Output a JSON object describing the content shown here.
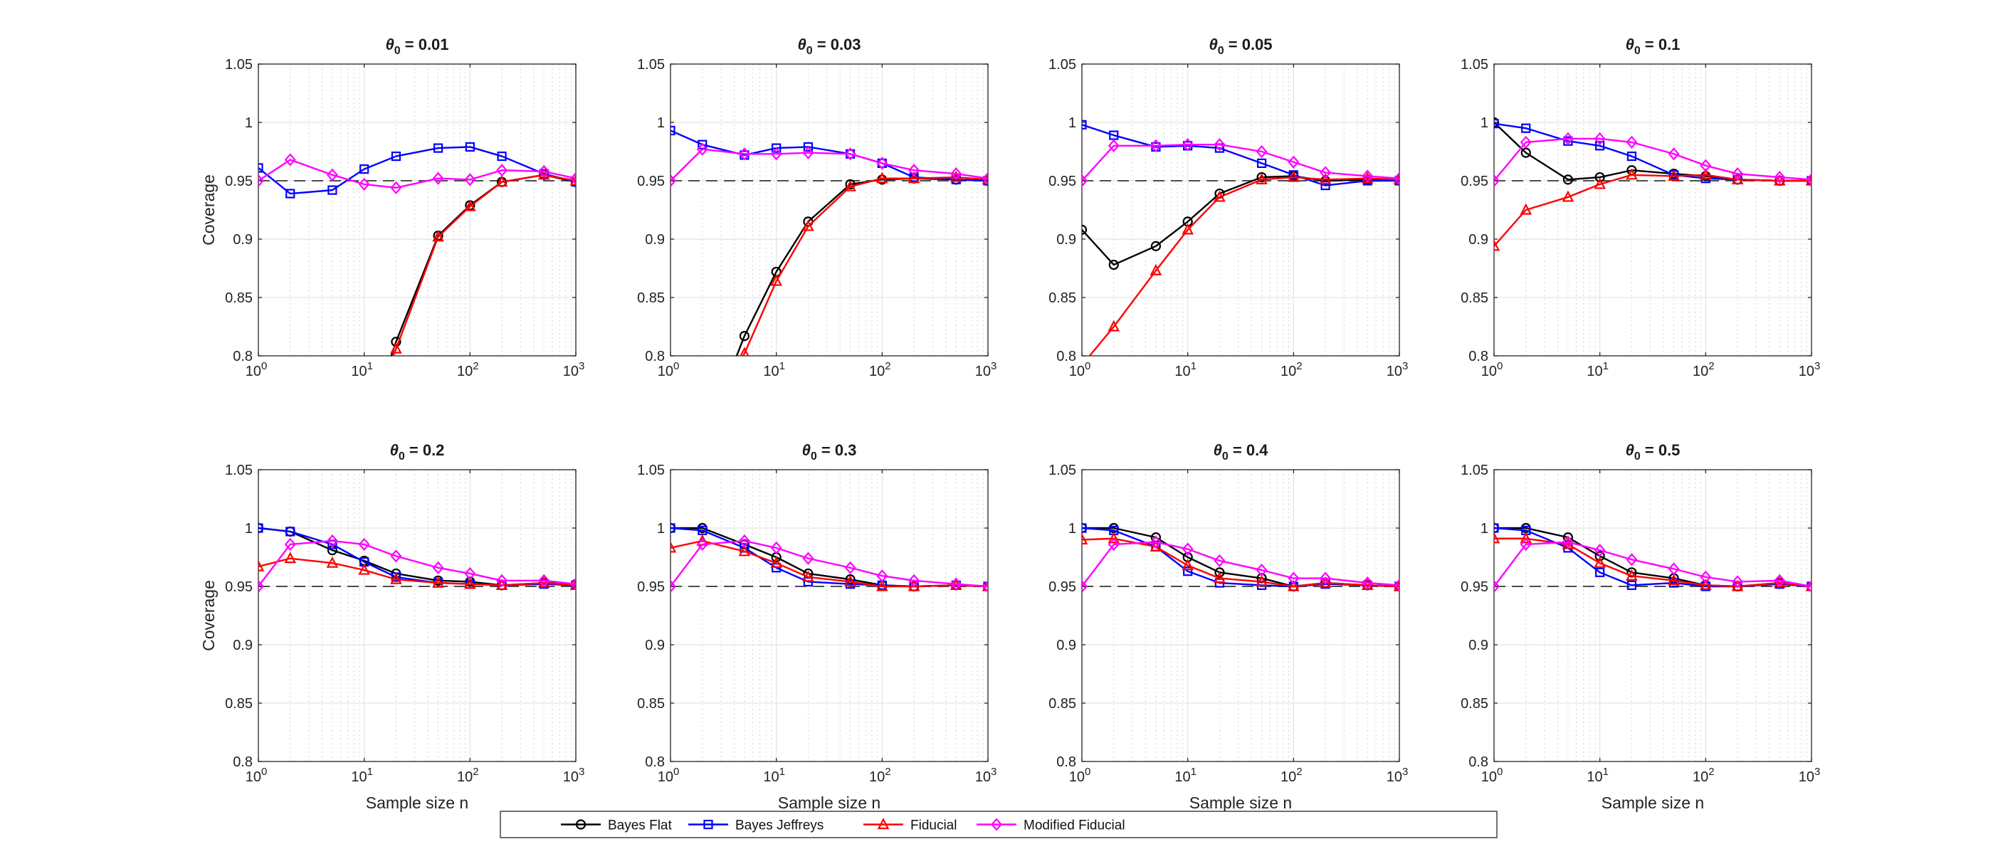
{
  "figure": {
    "legend_placement": "bottom-center",
    "ref_line_y": 0.95
  },
  "chart_data": [
    {
      "type": "line",
      "title": "θ0 = 0.01",
      "title_sub": "0",
      "title_value": " = 0.01",
      "xlabel": "",
      "ylabel": "Coverage",
      "xscale": "log",
      "xlim": [
        1,
        1000
      ],
      "ylim": [
        0.8,
        1.05
      ],
      "grid": true,
      "x": [
        1,
        2,
        5,
        10,
        20,
        50,
        100,
        200,
        500,
        1000
      ],
      "series": [
        {
          "name": "Bayes Flat",
          "color": "#000000",
          "marker": "circle",
          "values": [
            null,
            null,
            null,
            null,
            0.812,
            0.903,
            0.929,
            0.949,
            0.955,
            0.949
          ]
        },
        {
          "name": "Bayes Jeffreys",
          "color": "#0000ff",
          "marker": "square",
          "values": [
            0.961,
            0.939,
            0.942,
            0.96,
            0.971,
            0.978,
            0.979,
            0.971,
            0.956,
            0.949
          ]
        },
        {
          "name": "Fiducial",
          "color": "#ff0000",
          "marker": "triangle",
          "values": [
            null,
            null,
            null,
            null,
            0.806,
            0.902,
            0.928,
            0.949,
            0.955,
            0.95
          ]
        },
        {
          "name": "Modified Fiducial",
          "color": "#ff00ff",
          "marker": "diamond",
          "values": [
            0.95,
            0.968,
            0.955,
            0.947,
            0.944,
            0.952,
            0.951,
            0.959,
            0.958,
            0.952
          ]
        }
      ]
    },
    {
      "type": "line",
      "title": "θ0 = 0.03",
      "title_sub": "0",
      "title_value": " = 0.03",
      "xlabel": "",
      "ylabel": "",
      "xscale": "log",
      "xlim": [
        1,
        1000
      ],
      "ylim": [
        0.8,
        1.05
      ],
      "grid": true,
      "x": [
        1,
        2,
        5,
        10,
        20,
        50,
        100,
        200,
        500,
        1000
      ],
      "series": [
        {
          "name": "Bayes Flat",
          "color": "#000000",
          "marker": "circle",
          "values": [
            null,
            null,
            0.817,
            0.872,
            0.915,
            0.947,
            0.951,
            0.952,
            0.951,
            0.95
          ]
        },
        {
          "name": "Bayes Jeffreys",
          "color": "#0000ff",
          "marker": "square",
          "values": [
            0.993,
            0.981,
            0.972,
            0.978,
            0.979,
            0.973,
            0.965,
            0.953,
            0.951,
            0.95
          ]
        },
        {
          "name": "Fiducial",
          "color": "#ff0000",
          "marker": "triangle",
          "values": [
            null,
            null,
            0.802,
            0.864,
            0.911,
            0.945,
            0.952,
            0.952,
            0.953,
            0.951
          ]
        },
        {
          "name": "Modified Fiducial",
          "color": "#ff00ff",
          "marker": "diamond",
          "values": [
            0.95,
            0.977,
            0.973,
            0.973,
            0.974,
            0.973,
            0.965,
            0.959,
            0.956,
            0.952
          ]
        }
      ]
    },
    {
      "type": "line",
      "title": "θ0 = 0.05",
      "title_sub": "0",
      "title_value": " = 0.05",
      "xlabel": "",
      "ylabel": "",
      "xscale": "log",
      "xlim": [
        1,
        1000
      ],
      "ylim": [
        0.8,
        1.05
      ],
      "grid": true,
      "x": [
        1,
        2,
        5,
        10,
        20,
        50,
        100,
        200,
        500,
        1000
      ],
      "series": [
        {
          "name": "Bayes Flat",
          "color": "#000000",
          "marker": "circle",
          "values": [
            0.908,
            0.878,
            0.894,
            0.915,
            0.939,
            0.953,
            0.954,
            0.95,
            0.951,
            0.951
          ]
        },
        {
          "name": "Bayes Jeffreys",
          "color": "#0000ff",
          "marker": "square",
          "values": [
            0.998,
            0.989,
            0.979,
            0.98,
            0.978,
            0.965,
            0.955,
            0.946,
            0.95,
            0.95
          ]
        },
        {
          "name": "Fiducial",
          "color": "#ff0000",
          "marker": "triangle",
          "values": [
            0.792,
            0.825,
            0.873,
            0.908,
            0.936,
            0.951,
            0.953,
            0.951,
            0.952,
            0.951
          ]
        },
        {
          "name": "Modified Fiducial",
          "color": "#ff00ff",
          "marker": "diamond",
          "values": [
            0.95,
            0.98,
            0.98,
            0.981,
            0.981,
            0.975,
            0.966,
            0.957,
            0.954,
            0.952
          ]
        }
      ]
    },
    {
      "type": "line",
      "title": "θ0 = 0.1",
      "title_sub": "0",
      "title_value": " = 0.1",
      "xlabel": "",
      "ylabel": "",
      "xscale": "log",
      "xlim": [
        1,
        1000
      ],
      "ylim": [
        0.8,
        1.05
      ],
      "grid": true,
      "x": [
        1,
        2,
        5,
        10,
        20,
        50,
        100,
        200,
        500,
        1000
      ],
      "series": [
        {
          "name": "Bayes Flat",
          "color": "#000000",
          "marker": "circle",
          "values": [
            1.0,
            0.974,
            0.951,
            0.953,
            0.959,
            0.956,
            0.954,
            0.951,
            0.95,
            0.95
          ]
        },
        {
          "name": "Bayes Jeffreys",
          "color": "#0000ff",
          "marker": "square",
          "values": [
            0.999,
            0.995,
            0.984,
            0.98,
            0.971,
            0.955,
            0.952,
            0.951,
            0.95,
            0.95
          ]
        },
        {
          "name": "Fiducial",
          "color": "#ff0000",
          "marker": "triangle",
          "values": [
            0.894,
            0.925,
            0.936,
            0.947,
            0.955,
            0.954,
            0.955,
            0.951,
            0.95,
            0.95
          ]
        },
        {
          "name": "Modified Fiducial",
          "color": "#ff00ff",
          "marker": "diamond",
          "values": [
            0.95,
            0.983,
            0.986,
            0.986,
            0.983,
            0.973,
            0.963,
            0.956,
            0.953,
            0.951
          ]
        }
      ]
    },
    {
      "type": "line",
      "title": "θ0 = 0.2",
      "title_sub": "0",
      "title_value": " = 0.2",
      "xlabel": "Sample size n",
      "ylabel": "Coverage",
      "xscale": "log",
      "xlim": [
        1,
        1000
      ],
      "ylim": [
        0.8,
        1.05
      ],
      "grid": true,
      "x": [
        1,
        2,
        5,
        10,
        20,
        50,
        100,
        200,
        500,
        1000
      ],
      "series": [
        {
          "name": "Bayes Flat",
          "color": "#000000",
          "marker": "circle",
          "values": [
            1.0,
            0.997,
            0.981,
            0.972,
            0.961,
            0.955,
            0.954,
            0.951,
            0.953,
            0.952
          ]
        },
        {
          "name": "Bayes Jeffreys",
          "color": "#0000ff",
          "marker": "square",
          "values": [
            1.0,
            0.997,
            0.986,
            0.971,
            0.958,
            0.953,
            0.952,
            0.951,
            0.952,
            0.951
          ]
        },
        {
          "name": "Fiducial",
          "color": "#ff0000",
          "marker": "triangle",
          "values": [
            0.967,
            0.974,
            0.97,
            0.964,
            0.956,
            0.953,
            0.952,
            0.951,
            0.953,
            0.951
          ]
        },
        {
          "name": "Modified Fiducial",
          "color": "#ff00ff",
          "marker": "diamond",
          "values": [
            0.95,
            0.986,
            0.989,
            0.986,
            0.976,
            0.966,
            0.961,
            0.955,
            0.955,
            0.952
          ]
        }
      ]
    },
    {
      "type": "line",
      "title": "θ0 = 0.3",
      "title_sub": "0",
      "title_value": " = 0.3",
      "xlabel": "Sample size n",
      "ylabel": "",
      "xscale": "log",
      "xlim": [
        1,
        1000
      ],
      "ylim": [
        0.8,
        1.05
      ],
      "grid": true,
      "x": [
        1,
        2,
        5,
        10,
        20,
        50,
        100,
        200,
        500,
        1000
      ],
      "series": [
        {
          "name": "Bayes Flat",
          "color": "#000000",
          "marker": "circle",
          "values": [
            1.0,
            1.0,
            0.986,
            0.975,
            0.961,
            0.956,
            0.951,
            0.95,
            0.951,
            0.95
          ]
        },
        {
          "name": "Bayes Jeffreys",
          "color": "#0000ff",
          "marker": "square",
          "values": [
            1.0,
            0.998,
            0.983,
            0.966,
            0.954,
            0.952,
            0.951,
            0.95,
            0.951,
            0.95
          ]
        },
        {
          "name": "Fiducial",
          "color": "#ff0000",
          "marker": "triangle",
          "values": [
            0.983,
            0.989,
            0.98,
            0.97,
            0.958,
            0.954,
            0.95,
            0.95,
            0.951,
            0.95
          ]
        },
        {
          "name": "Modified Fiducial",
          "color": "#ff00ff",
          "marker": "diamond",
          "values": [
            0.95,
            0.986,
            0.989,
            0.983,
            0.974,
            0.966,
            0.959,
            0.955,
            0.952,
            0.95
          ]
        }
      ]
    },
    {
      "type": "line",
      "title": "θ0 = 0.4",
      "title_sub": "0",
      "title_value": " = 0.4",
      "xlabel": "Sample size n",
      "ylabel": "",
      "xscale": "log",
      "xlim": [
        1,
        1000
      ],
      "ylim": [
        0.8,
        1.05
      ],
      "grid": true,
      "x": [
        1,
        2,
        5,
        10,
        20,
        50,
        100,
        200,
        500,
        1000
      ],
      "series": [
        {
          "name": "Bayes Flat",
          "color": "#000000",
          "marker": "circle",
          "values": [
            1.0,
            1.0,
            0.992,
            0.975,
            0.962,
            0.957,
            0.95,
            0.953,
            0.951,
            0.95
          ]
        },
        {
          "name": "Bayes Jeffreys",
          "color": "#0000ff",
          "marker": "square",
          "values": [
            1.0,
            0.998,
            0.984,
            0.963,
            0.953,
            0.951,
            0.95,
            0.952,
            0.951,
            0.95
          ]
        },
        {
          "name": "Fiducial",
          "color": "#ff0000",
          "marker": "triangle",
          "values": [
            0.99,
            0.991,
            0.984,
            0.968,
            0.957,
            0.954,
            0.95,
            0.953,
            0.951,
            0.95
          ]
        },
        {
          "name": "Modified Fiducial",
          "color": "#ff00ff",
          "marker": "diamond",
          "values": [
            0.95,
            0.986,
            0.988,
            0.982,
            0.972,
            0.964,
            0.957,
            0.957,
            0.953,
            0.951
          ]
        }
      ]
    },
    {
      "type": "line",
      "title": "θ0 = 0.5",
      "title_sub": "0",
      "title_value": " = 0.5",
      "xlabel": "Sample size n",
      "ylabel": "",
      "xscale": "log",
      "xlim": [
        1,
        1000
      ],
      "ylim": [
        0.8,
        1.05
      ],
      "grid": true,
      "x": [
        1,
        2,
        5,
        10,
        20,
        50,
        100,
        200,
        500,
        1000
      ],
      "series": [
        {
          "name": "Bayes Flat",
          "color": "#000000",
          "marker": "circle",
          "values": [
            1.0,
            1.0,
            0.992,
            0.976,
            0.962,
            0.957,
            0.951,
            0.95,
            0.953,
            0.95
          ]
        },
        {
          "name": "Bayes Jeffreys",
          "color": "#0000ff",
          "marker": "square",
          "values": [
            1.0,
            0.998,
            0.983,
            0.962,
            0.951,
            0.953,
            0.95,
            0.95,
            0.952,
            0.95
          ]
        },
        {
          "name": "Fiducial",
          "color": "#ff0000",
          "marker": "triangle",
          "values": [
            0.991,
            0.991,
            0.986,
            0.97,
            0.959,
            0.955,
            0.951,
            0.95,
            0.953,
            0.95
          ]
        },
        {
          "name": "Modified Fiducial",
          "color": "#ff00ff",
          "marker": "diamond",
          "values": [
            0.95,
            0.986,
            0.988,
            0.981,
            0.973,
            0.965,
            0.958,
            0.954,
            0.955,
            0.95
          ]
        }
      ]
    }
  ],
  "legend": {
    "items": [
      {
        "label": "Bayes Flat",
        "color": "#000000",
        "marker": "circle"
      },
      {
        "label": "Bayes Jeffreys",
        "color": "#0000ff",
        "marker": "square"
      },
      {
        "label": "Fiducial",
        "color": "#ff0000",
        "marker": "triangle"
      },
      {
        "label": "Modified Fiducial",
        "color": "#ff00ff",
        "marker": "diamond"
      }
    ]
  }
}
